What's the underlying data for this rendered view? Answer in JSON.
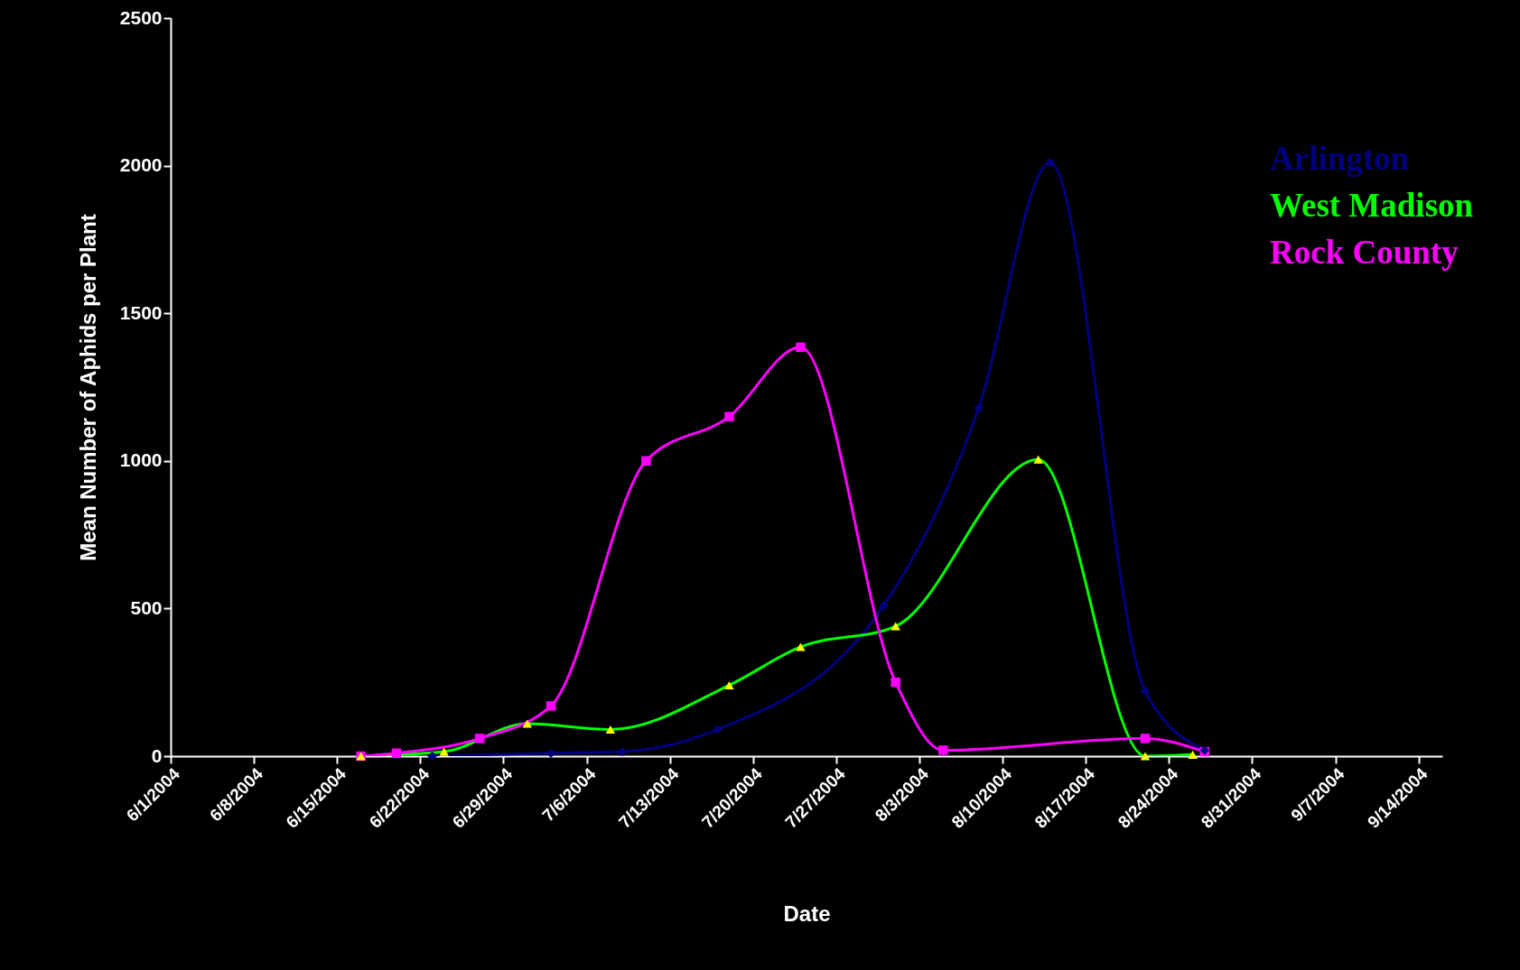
{
  "chart_data": {
    "type": "line",
    "xlabel": "Date",
    "ylabel": "Mean Number of Aphids per Plant",
    "xlim": [
      "2004-06-01",
      "2004-09-16"
    ],
    "xticks": [
      {
        "value": "2004-06-01",
        "label": "6/1/2004"
      },
      {
        "value": "2004-06-08",
        "label": "6/8/2004"
      },
      {
        "value": "2004-06-15",
        "label": "6/15/2004"
      },
      {
        "value": "2004-06-22",
        "label": "6/22/2004"
      },
      {
        "value": "2004-06-29",
        "label": "6/29/2004"
      },
      {
        "value": "2004-07-06",
        "label": "7/6/2004"
      },
      {
        "value": "2004-07-13",
        "label": "7/13/2004"
      },
      {
        "value": "2004-07-20",
        "label": "7/20/2004"
      },
      {
        "value": "2004-07-27",
        "label": "7/27/2004"
      },
      {
        "value": "2004-08-03",
        "label": "8/3/2004"
      },
      {
        "value": "2004-08-10",
        "label": "8/10/2004"
      },
      {
        "value": "2004-08-17",
        "label": "8/17/2004"
      },
      {
        "value": "2004-08-24",
        "label": "8/24/2004"
      },
      {
        "value": "2004-08-31",
        "label": "8/31/2004"
      },
      {
        "value": "2004-09-07",
        "label": "9/7/2004"
      },
      {
        "value": "2004-09-14",
        "label": "9/14/2004"
      }
    ],
    "ylim": [
      0,
      2500
    ],
    "yticks": [
      0,
      500,
      1000,
      1500,
      2000,
      2500
    ],
    "line_style": "solid",
    "grid": false,
    "legend": "top right",
    "series": [
      {
        "name": "Arlington",
        "color": "#000080",
        "marker": "diamond",
        "x": [
          "2004-06-23",
          "2004-07-03",
          "2004-07-09",
          "2004-07-17",
          "2004-07-31",
          "2004-08-08",
          "2004-08-14",
          "2004-08-22",
          "2004-08-27"
        ],
        "values": [
          0,
          10,
          15,
          90,
          510,
          1180,
          2010,
          220,
          20
        ]
      },
      {
        "name": "West Madison",
        "color": "#00ff00",
        "marker": "triangle",
        "colors": [
          "#ffff00",
          "#ffff00",
          "#ffff00",
          "#ffff00",
          "#ffff00",
          "#ffff00",
          "#ffff00",
          "#ffff00",
          "#ffff00",
          "#ffff00"
        ],
        "x": [
          "2004-06-17",
          "2004-06-24",
          "2004-07-01",
          "2004-07-08",
          "2004-07-18",
          "2004-07-24",
          "2004-08-01",
          "2004-08-13",
          "2004-08-22",
          "2004-08-26"
        ],
        "values": [
          0,
          15,
          110,
          90,
          240,
          370,
          440,
          1005,
          0,
          5
        ]
      },
      {
        "name": "Rock County",
        "color": "#ff00ff",
        "marker": "square",
        "x": [
          "2004-06-17",
          "2004-06-20",
          "2004-06-27",
          "2004-07-03",
          "2004-07-11",
          "2004-07-18",
          "2004-07-24",
          "2004-08-01",
          "2004-08-05",
          "2004-08-22",
          "2004-08-27"
        ],
        "values": [
          0,
          10,
          60,
          170,
          1000,
          1150,
          1385,
          250,
          20,
          60,
          15
        ]
      }
    ]
  }
}
